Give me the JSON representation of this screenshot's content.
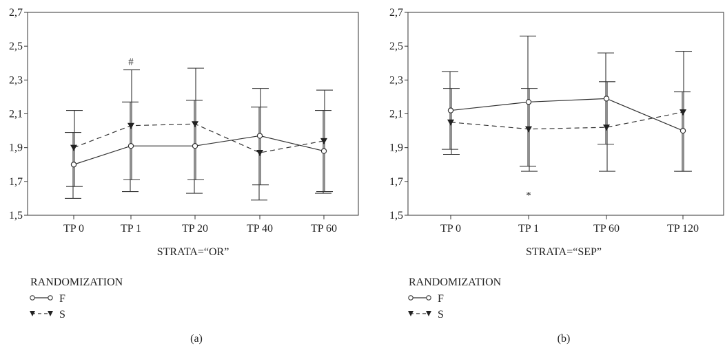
{
  "chart_data": [
    {
      "type": "line",
      "panel_label": "(a)",
      "xlabel": "STRATA=“OR”",
      "categories": [
        "TP 0",
        "TP 1",
        "TP 20",
        "TP 40",
        "TP 60"
      ],
      "ylim": [
        1.5,
        2.7
      ],
      "yticks": [
        "1,5",
        "1,7",
        "1,9",
        "2,1",
        "2,3",
        "2,5",
        "2,7"
      ],
      "ytick_values": [
        1.5,
        1.7,
        1.9,
        2.1,
        2.3,
        2.5,
        2.7
      ],
      "legend_title": "RANDOMIZATION",
      "series": [
        {
          "name": "F",
          "marker": "open-circle",
          "dash": "solid",
          "values": [
            1.8,
            1.91,
            1.91,
            1.97,
            1.88
          ],
          "err_low": [
            1.6,
            1.64,
            1.63,
            1.59,
            1.63
          ],
          "err_high": [
            1.99,
            2.17,
            2.18,
            2.14,
            2.12
          ]
        },
        {
          "name": "S",
          "marker": "filled-triangle-down",
          "dash": "dashed",
          "values": [
            1.9,
            2.03,
            2.04,
            1.87,
            1.94
          ],
          "err_low": [
            1.67,
            1.71,
            1.71,
            1.68,
            1.64
          ],
          "err_high": [
            2.12,
            2.36,
            2.37,
            2.25,
            2.24
          ]
        }
      ],
      "annotations": [
        {
          "text": "#",
          "category": "TP 1",
          "y": 2.41
        }
      ]
    },
    {
      "type": "line",
      "panel_label": "(b)",
      "xlabel": "STRATA=“SEP”",
      "categories": [
        "TP 0",
        "TP 1",
        "TP 60",
        "TP 120"
      ],
      "ylim": [
        1.5,
        2.7
      ],
      "yticks": [
        "1,5",
        "1,7",
        "1,9",
        "2,1",
        "2,3",
        "2,5",
        "2,7"
      ],
      "ytick_values": [
        1.5,
        1.7,
        1.9,
        2.1,
        2.3,
        2.5,
        2.7
      ],
      "legend_title": "RANDOMIZATION",
      "series": [
        {
          "name": "F",
          "marker": "open-circle",
          "dash": "solid",
          "values": [
            2.12,
            2.17,
            2.19,
            2.0
          ],
          "err_low": [
            1.89,
            1.79,
            1.92,
            1.76
          ],
          "err_high": [
            2.35,
            2.56,
            2.46,
            2.23
          ]
        },
        {
          "name": "S",
          "marker": "filled-triangle-down",
          "dash": "dashed",
          "values": [
            2.05,
            2.01,
            2.02,
            2.11
          ],
          "err_low": [
            1.86,
            1.76,
            1.76,
            1.76
          ],
          "err_high": [
            2.25,
            2.25,
            2.29,
            2.47
          ]
        }
      ],
      "annotations": [
        {
          "text": "*",
          "category": "TP 1",
          "y": 1.62
        }
      ]
    }
  ]
}
